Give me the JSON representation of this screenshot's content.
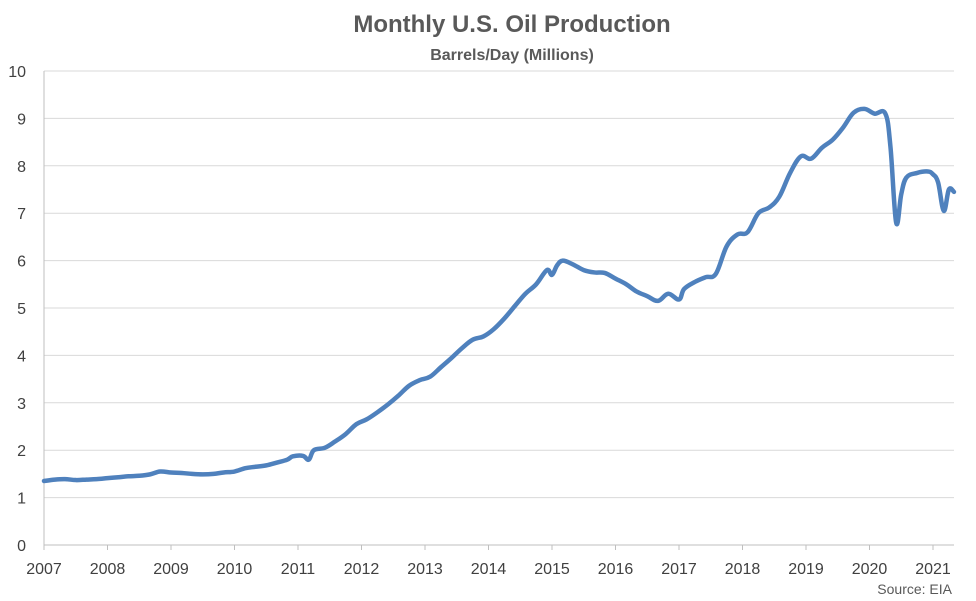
{
  "chart_data": {
    "type": "line",
    "title": "Monthly U.S. Oil Production",
    "subtitle": "Barrels/Day (Millions)",
    "source": "Source: EIA",
    "xlabel": "",
    "ylabel": "",
    "ylim": [
      0,
      10
    ],
    "xlim": [
      2007.0,
      2021.33
    ],
    "y_ticks": [
      "0",
      "1",
      "2",
      "3",
      "4",
      "5",
      "6",
      "7",
      "8",
      "9",
      "10"
    ],
    "x_ticks": [
      "2007",
      "2008",
      "2009",
      "2010",
      "2011",
      "2012",
      "2013",
      "2014",
      "2015",
      "2016",
      "2017",
      "2018",
      "2019",
      "2020",
      "2021"
    ],
    "grid": true,
    "legend": "none",
    "series": [
      {
        "color": "#4f81bd",
        "points": [
          [
            2007.0,
            1.35
          ],
          [
            2007.17,
            1.38
          ],
          [
            2007.33,
            1.39
          ],
          [
            2007.5,
            1.37
          ],
          [
            2007.67,
            1.38
          ],
          [
            2007.83,
            1.39
          ],
          [
            2008.0,
            1.41
          ],
          [
            2008.17,
            1.43
          ],
          [
            2008.33,
            1.45
          ],
          [
            2008.5,
            1.46
          ],
          [
            2008.67,
            1.49
          ],
          [
            2008.83,
            1.55
          ],
          [
            2009.0,
            1.53
          ],
          [
            2009.17,
            1.52
          ],
          [
            2009.33,
            1.5
          ],
          [
            2009.5,
            1.49
          ],
          [
            2009.67,
            1.5
          ],
          [
            2009.83,
            1.53
          ],
          [
            2010.0,
            1.55
          ],
          [
            2010.17,
            1.62
          ],
          [
            2010.33,
            1.65
          ],
          [
            2010.5,
            1.68
          ],
          [
            2010.67,
            1.74
          ],
          [
            2010.83,
            1.8
          ],
          [
            2010.92,
            1.87
          ],
          [
            2011.08,
            1.88
          ],
          [
            2011.17,
            1.8
          ],
          [
            2011.25,
            2.0
          ],
          [
            2011.42,
            2.05
          ],
          [
            2011.58,
            2.18
          ],
          [
            2011.75,
            2.34
          ],
          [
            2011.92,
            2.55
          ],
          [
            2012.08,
            2.65
          ],
          [
            2012.25,
            2.8
          ],
          [
            2012.42,
            2.97
          ],
          [
            2012.58,
            3.15
          ],
          [
            2012.75,
            3.36
          ],
          [
            2012.92,
            3.48
          ],
          [
            2013.08,
            3.55
          ],
          [
            2013.25,
            3.75
          ],
          [
            2013.42,
            3.95
          ],
          [
            2013.58,
            4.15
          ],
          [
            2013.75,
            4.33
          ],
          [
            2013.92,
            4.4
          ],
          [
            2014.08,
            4.55
          ],
          [
            2014.25,
            4.78
          ],
          [
            2014.42,
            5.05
          ],
          [
            2014.58,
            5.3
          ],
          [
            2014.75,
            5.5
          ],
          [
            2014.92,
            5.8
          ],
          [
            2015.0,
            5.7
          ],
          [
            2015.08,
            5.9
          ],
          [
            2015.17,
            6.0
          ],
          [
            2015.33,
            5.92
          ],
          [
            2015.5,
            5.8
          ],
          [
            2015.67,
            5.75
          ],
          [
            2015.83,
            5.74
          ],
          [
            2016.0,
            5.62
          ],
          [
            2016.17,
            5.5
          ],
          [
            2016.33,
            5.35
          ],
          [
            2016.5,
            5.25
          ],
          [
            2016.67,
            5.15
          ],
          [
            2016.83,
            5.3
          ],
          [
            2017.0,
            5.18
          ],
          [
            2017.08,
            5.4
          ],
          [
            2017.25,
            5.55
          ],
          [
            2017.42,
            5.65
          ],
          [
            2017.58,
            5.72
          ],
          [
            2017.75,
            6.3
          ],
          [
            2017.92,
            6.55
          ],
          [
            2018.08,
            6.6
          ],
          [
            2018.25,
            7.0
          ],
          [
            2018.42,
            7.12
          ],
          [
            2018.58,
            7.35
          ],
          [
            2018.75,
            7.85
          ],
          [
            2018.92,
            8.2
          ],
          [
            2019.08,
            8.15
          ],
          [
            2019.25,
            8.38
          ],
          [
            2019.42,
            8.55
          ],
          [
            2019.58,
            8.8
          ],
          [
            2019.75,
            9.12
          ],
          [
            2019.92,
            9.2
          ],
          [
            2020.08,
            9.1
          ],
          [
            2020.25,
            9.1
          ],
          [
            2020.33,
            8.4
          ],
          [
            2020.42,
            6.8
          ],
          [
            2020.5,
            7.4
          ],
          [
            2020.58,
            7.75
          ],
          [
            2020.75,
            7.85
          ],
          [
            2020.92,
            7.88
          ],
          [
            2021.0,
            7.82
          ],
          [
            2021.08,
            7.65
          ],
          [
            2021.17,
            7.05
          ],
          [
            2021.25,
            7.5
          ],
          [
            2021.33,
            7.45
          ]
        ]
      }
    ]
  }
}
